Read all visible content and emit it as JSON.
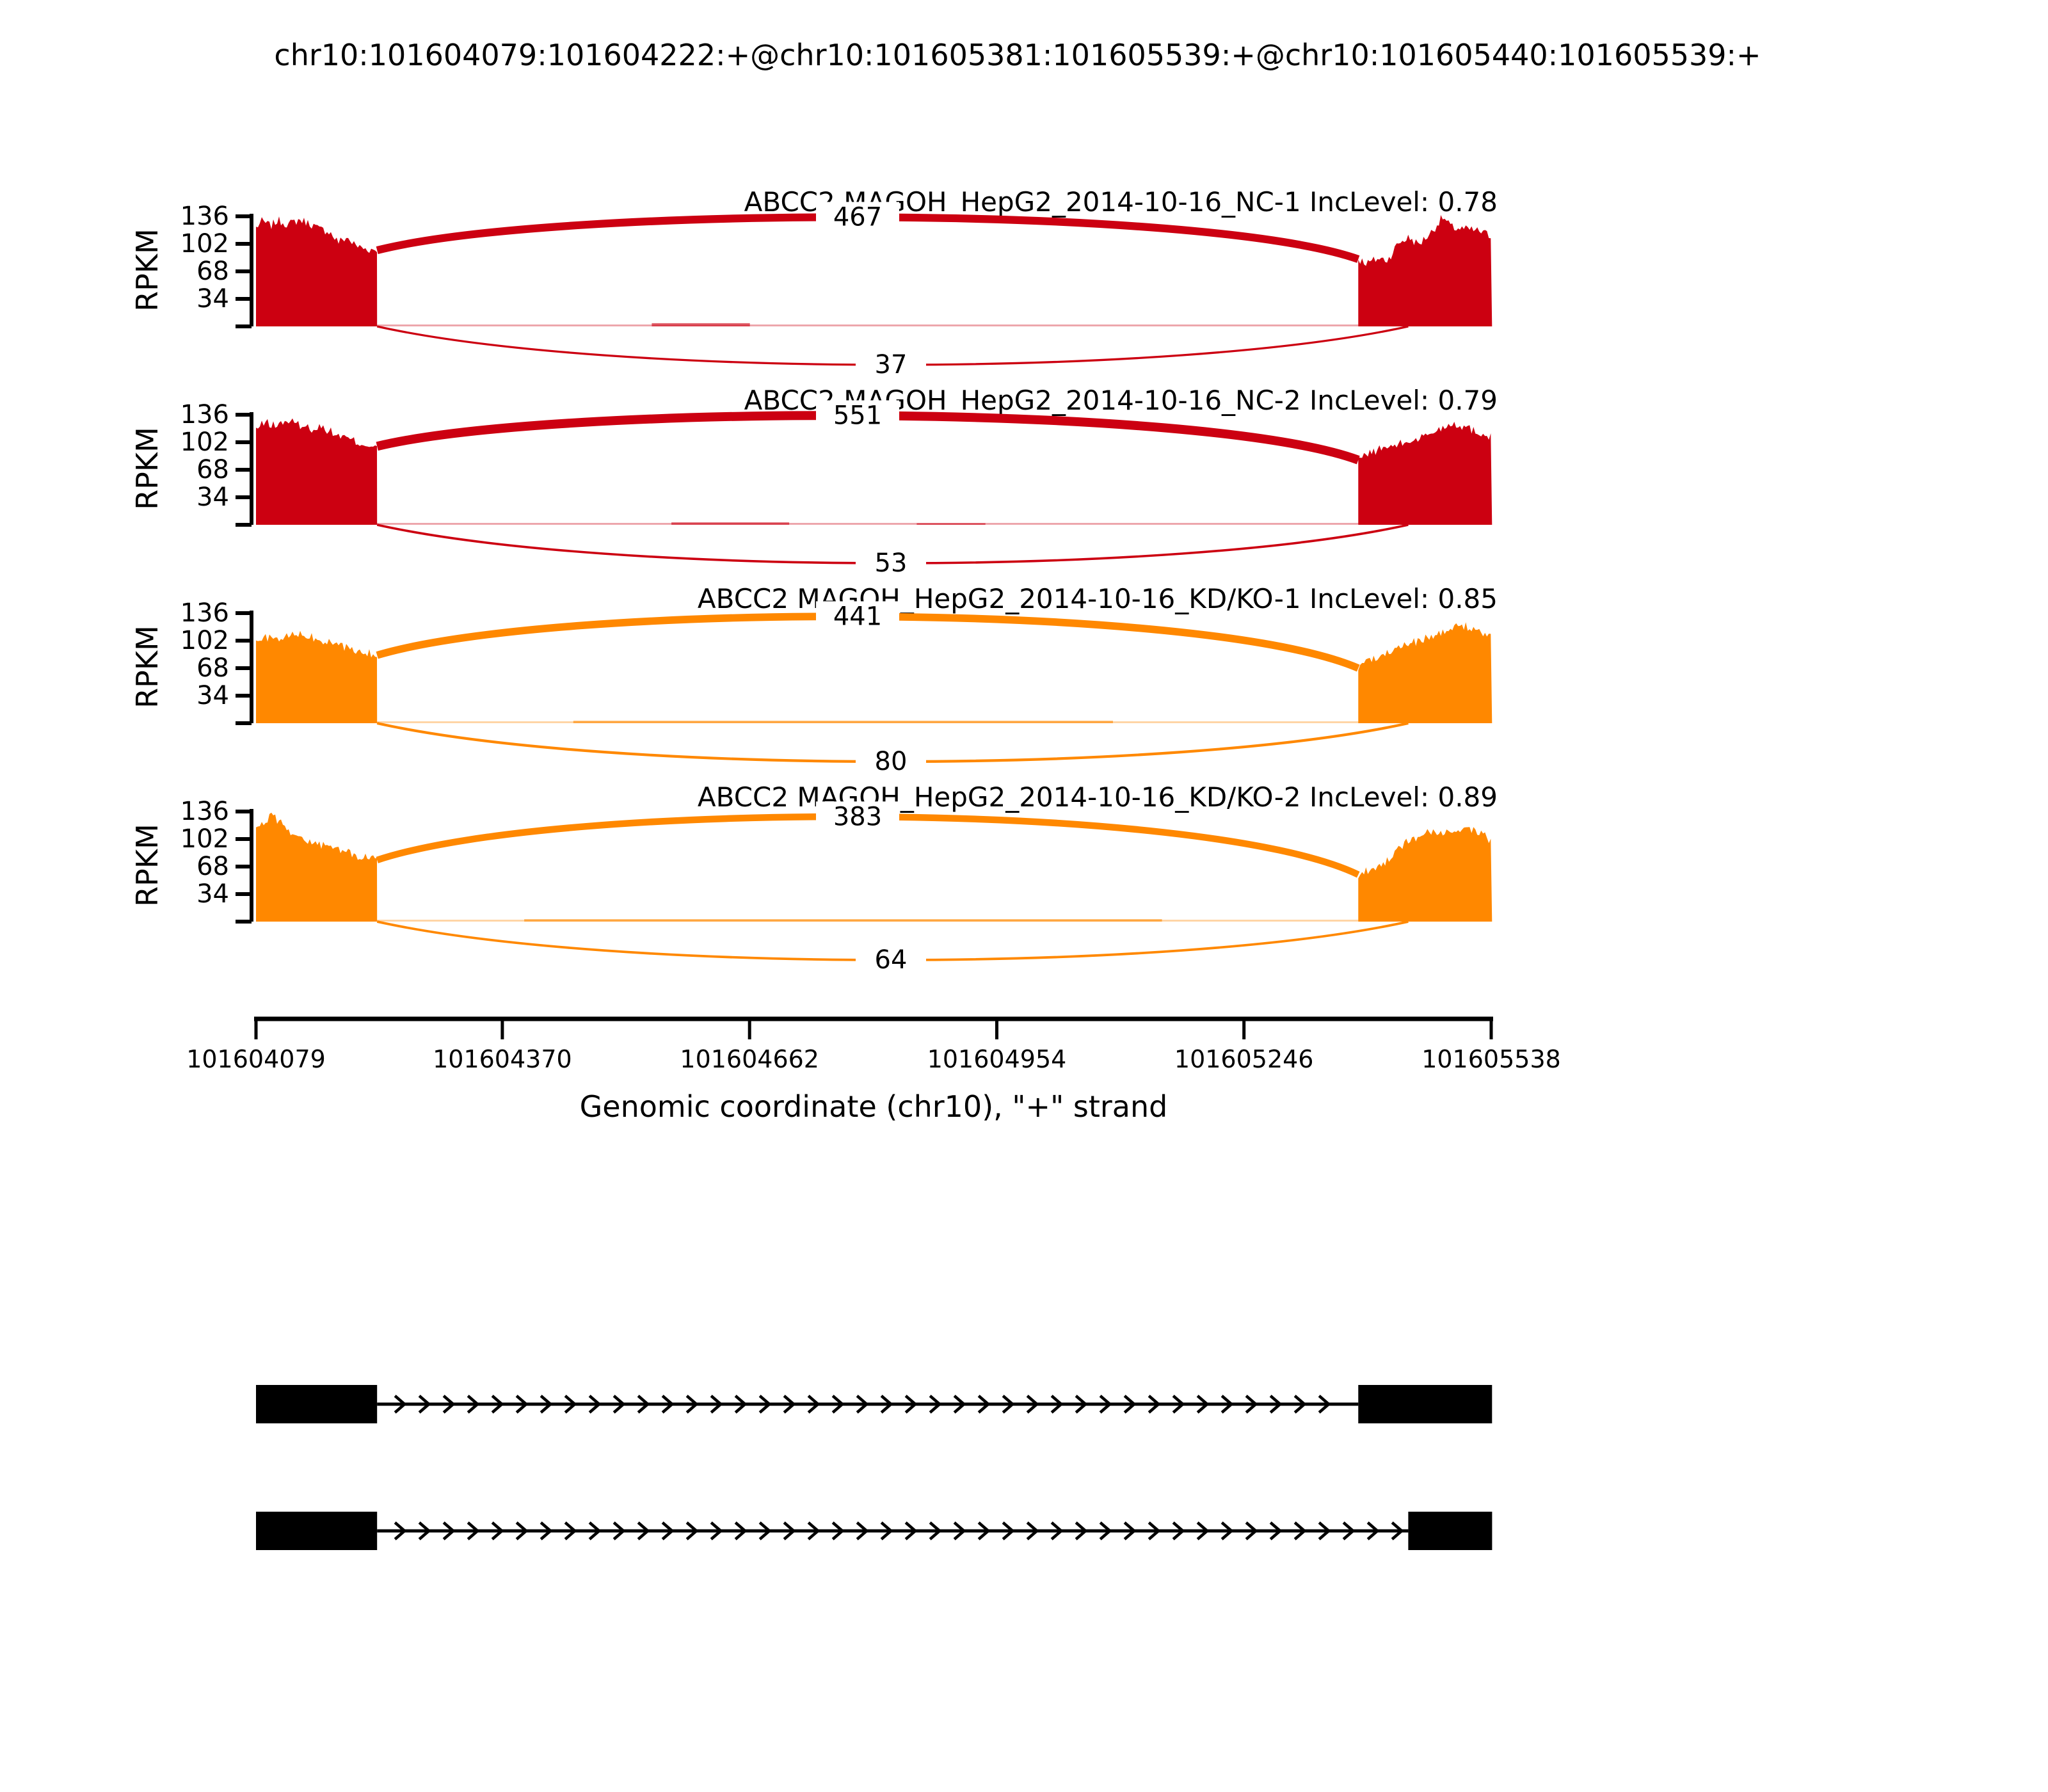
{
  "title": "chr10:101604079:101604222:+@chr10:101605381:101605539:+@chr10:101605440:101605539:+",
  "colors": {
    "group1": "#CC0011",
    "group2": "#FF8800"
  },
  "chart_data": {
    "type": "sashimi",
    "title": "chr10:101604079:101604222:+@chr10:101605381:101605539:+@chr10:101605440:101605539:+",
    "xlabel": "Genomic coordinate (chr10), \"+\" strand",
    "ylabel": "RPKM",
    "chromosome": "chr10",
    "strand": "+",
    "x_range": [
      101604079,
      101605538
    ],
    "x_ticks": [
      101604079,
      101604370,
      101604662,
      101604954,
      101605246,
      101605538
    ],
    "y_ticks": [
      34,
      68,
      102,
      136
    ],
    "y_max": 136,
    "event": {
      "shared_exon": [
        101604079,
        101604222
      ],
      "long_exon": [
        101605381,
        101605539
      ],
      "short_exon": [
        101605440,
        101605539
      ]
    },
    "tracks": [
      {
        "label": "ABCC2 MAGOH_HepG2_2014-10-16_NC-1 IncLevel: 0.78",
        "sample": "NC-1",
        "group": 1,
        "inc_level": 0.78,
        "color": "#CC0011",
        "seed": 7,
        "junctions": [
          {
            "count": 467,
            "from": 101604222,
            "to": 101605381,
            "position": "above"
          },
          {
            "count": 37,
            "from": 101604222,
            "to": 101605440,
            "position": "below"
          }
        ],
        "coverage": {
          "left_exon": [
            [
              0,
              122
            ],
            [
              0.05,
              130
            ],
            [
              0.12,
              124
            ],
            [
              0.18,
              131
            ],
            [
              0.27,
              126
            ],
            [
              0.36,
              132
            ],
            [
              0.45,
              127
            ],
            [
              0.52,
              120
            ],
            [
              0.6,
              118
            ],
            [
              0.68,
              104
            ],
            [
              0.75,
              110
            ],
            [
              0.82,
              100
            ],
            [
              0.9,
              96
            ],
            [
              1,
              94
            ]
          ],
          "right_exon": [
            [
              0,
              83
            ],
            [
              0.07,
              78
            ],
            [
              0.15,
              84
            ],
            [
              0.22,
              82
            ],
            [
              0.3,
              103
            ],
            [
              0.38,
              110
            ],
            [
              0.45,
              101
            ],
            [
              0.55,
              117
            ],
            [
              0.63,
              135
            ],
            [
              0.7,
              122
            ],
            [
              0.8,
              120
            ],
            [
              0.9,
              118
            ],
            [
              1,
              111
            ]
          ],
          "intron_bumps": [
            [
              0.28,
              0.38,
              4
            ]
          ]
        }
      },
      {
        "label": "ABCC2 MAGOH_HepG2_2014-10-16_NC-2 IncLevel: 0.79",
        "sample": "NC-2",
        "group": 1,
        "inc_level": 0.79,
        "color": "#CC0011",
        "seed": 13,
        "junctions": [
          {
            "count": 551,
            "from": 101604222,
            "to": 101605381,
            "position": "above"
          },
          {
            "count": 53,
            "from": 101604222,
            "to": 101605440,
            "position": "below"
          }
        ],
        "coverage": {
          "left_exon": [
            [
              0,
              118
            ],
            [
              0.08,
              127
            ],
            [
              0.16,
              122
            ],
            [
              0.25,
              129
            ],
            [
              0.35,
              124
            ],
            [
              0.45,
              119
            ],
            [
              0.55,
              121
            ],
            [
              0.65,
              112
            ],
            [
              0.75,
              107
            ],
            [
              0.85,
              101
            ],
            [
              1,
              97
            ]
          ],
          "right_exon": [
            [
              0,
              80
            ],
            [
              0.1,
              90
            ],
            [
              0.2,
              95
            ],
            [
              0.3,
              99
            ],
            [
              0.4,
              104
            ],
            [
              0.5,
              110
            ],
            [
              0.6,
              118
            ],
            [
              0.7,
              126
            ],
            [
              0.8,
              121
            ],
            [
              0.9,
              114
            ],
            [
              1,
              109
            ]
          ],
          "intron_bumps": [
            [
              0.3,
              0.42,
              3
            ],
            [
              0.55,
              0.62,
              2
            ]
          ]
        }
      },
      {
        "label": "ABCC2 MAGOH_HepG2_2014-10-16_KD/KO-1 IncLevel: 0.85",
        "sample": "KD/KO-1",
        "group": 2,
        "inc_level": 0.85,
        "color": "#FF8800",
        "seed": 21,
        "junctions": [
          {
            "count": 441,
            "from": 101604222,
            "to": 101605381,
            "position": "above"
          },
          {
            "count": 80,
            "from": 101604222,
            "to": 101605440,
            "position": "below"
          }
        ],
        "coverage": {
          "left_exon": [
            [
              0,
              99
            ],
            [
              0.08,
              106
            ],
            [
              0.18,
              103
            ],
            [
              0.28,
              108
            ],
            [
              0.38,
              110
            ],
            [
              0.48,
              105
            ],
            [
              0.58,
              100
            ],
            [
              0.68,
              96
            ],
            [
              0.78,
              91
            ],
            [
              0.88,
              88
            ],
            [
              1,
              84
            ]
          ],
          "right_exon": [
            [
              0,
              68
            ],
            [
              0.1,
              80
            ],
            [
              0.2,
              88
            ],
            [
              0.3,
              94
            ],
            [
              0.4,
              99
            ],
            [
              0.5,
              104
            ],
            [
              0.6,
              110
            ],
            [
              0.7,
              117
            ],
            [
              0.8,
              121
            ],
            [
              0.9,
              113
            ],
            [
              1,
              104
            ]
          ],
          "intron_bumps": [
            [
              0.2,
              0.75,
              3
            ]
          ]
        }
      },
      {
        "label": "ABCC2 MAGOH_HepG2_2014-10-16_KD/KO-2 IncLevel: 0.89",
        "sample": "KD/KO-2",
        "group": 2,
        "inc_level": 0.89,
        "color": "#FF8800",
        "seed": 29,
        "junctions": [
          {
            "count": 383,
            "from": 101604222,
            "to": 101605381,
            "position": "above"
          },
          {
            "count": 64,
            "from": 101604222,
            "to": 101605440,
            "position": "below"
          }
        ],
        "coverage": {
          "left_exon": [
            [
              0,
              112
            ],
            [
              0.07,
              124
            ],
            [
              0.14,
              131
            ],
            [
              0.22,
              120
            ],
            [
              0.3,
              110
            ],
            [
              0.4,
              101
            ],
            [
              0.5,
              96
            ],
            [
              0.6,
              92
            ],
            [
              0.72,
              88
            ],
            [
              0.85,
              80
            ],
            [
              1,
              76
            ]
          ],
          "right_exon": [
            [
              0,
              58
            ],
            [
              0.08,
              64
            ],
            [
              0.18,
              70
            ],
            [
              0.3,
              92
            ],
            [
              0.42,
              103
            ],
            [
              0.52,
              110
            ],
            [
              0.62,
              107
            ],
            [
              0.72,
              113
            ],
            [
              0.82,
              116
            ],
            [
              0.9,
              110
            ],
            [
              1,
              99
            ]
          ],
          "intron_bumps": [
            [
              0.15,
              0.8,
              3
            ]
          ]
        }
      }
    ],
    "transcripts": [
      {
        "exons": [
          [
            101604079,
            101604222
          ],
          [
            101605381,
            101605539
          ]
        ]
      },
      {
        "exons": [
          [
            101604079,
            101604222
          ],
          [
            101605440,
            101605539
          ]
        ]
      }
    ]
  }
}
